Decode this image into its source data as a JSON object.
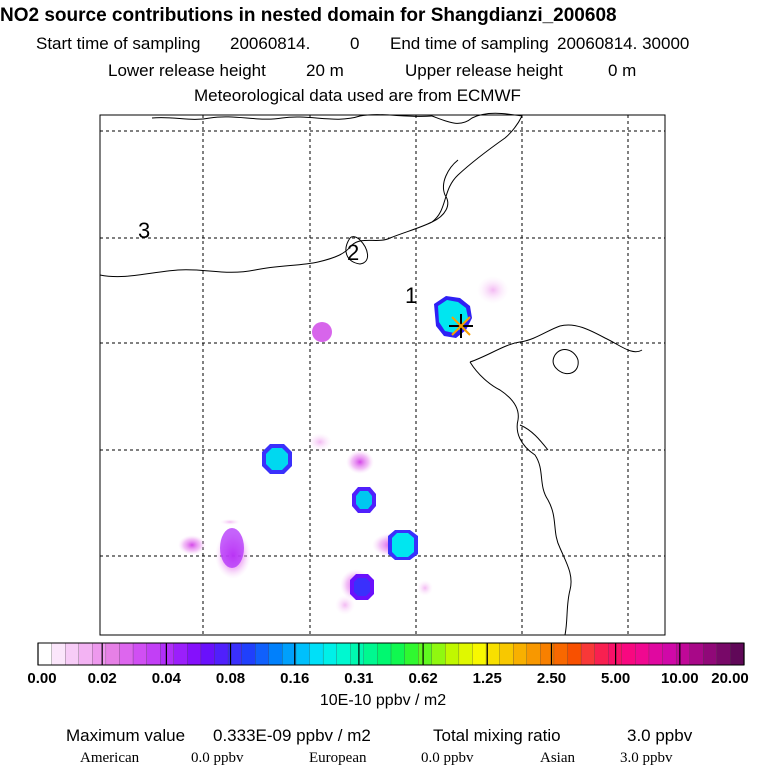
{
  "header": {
    "title": "NO2 source contributions in nested domain for Shangdianzi_200608",
    "start_label": "Start time of sampling",
    "start_value": "20060814.",
    "start_hour": "0",
    "end_label": "End time of sampling",
    "end_value": "20060814. 30000",
    "lower_label": "Lower release height",
    "lower_value": "20 m",
    "upper_label": "Upper release height",
    "upper_value": "0 m",
    "met_note": "Meteorological data used are from ECMWF"
  },
  "map": {
    "contour_labels": [
      "3",
      "2",
      "1"
    ],
    "station": "Shangdianzi"
  },
  "colorbar": {
    "ticks": [
      "0.00",
      "0.02",
      "0.04",
      "0.08",
      "0.16",
      "0.31",
      "0.62",
      "1.25",
      "2.50",
      "5.00",
      "10.00",
      "20.00"
    ],
    "unit": "10E-10 ppbv / m2",
    "colors": [
      "#ffffff",
      "#fbe6fb",
      "#f7ccf7",
      "#f3b3f3",
      "#ee99ee",
      "#e680e6",
      "#dd66ee",
      "#d04ff3",
      "#c23ff6",
      "#b12ff9",
      "#9b1ffb",
      "#8510fc",
      "#6a10fc",
      "#5020fc",
      "#3a30fc",
      "#2040fc",
      "#1060fc",
      "#0080fc",
      "#00a0fc",
      "#00c0fc",
      "#00e0f8",
      "#00f0e8",
      "#00f8d0",
      "#00f8b0",
      "#00f890",
      "#00f870",
      "#10f850",
      "#30f830",
      "#60f820",
      "#90f810",
      "#c0f800",
      "#e0f800",
      "#f8f800",
      "#f8e000",
      "#f8c800",
      "#f8b000",
      "#f89800",
      "#f88000",
      "#f86800",
      "#f85000",
      "#f83838",
      "#f82050",
      "#f81068",
      "#f80880",
      "#f00890",
      "#e008a0",
      "#d008a8",
      "#c00898",
      "#a80888",
      "#900878",
      "#780868",
      "#600858"
    ]
  },
  "footer": {
    "max_label": "Maximum value",
    "max_value": "0.333E-09 ppbv / m2",
    "total_label": "Total mixing ratio",
    "total_value": "3.0 ppbv",
    "american_label": "American",
    "american_value": "0.0 ppbv",
    "european_label": "European",
    "european_value": "0.0 ppbv",
    "asian_label": "Asian",
    "asian_value": "3.0 ppbv"
  }
}
